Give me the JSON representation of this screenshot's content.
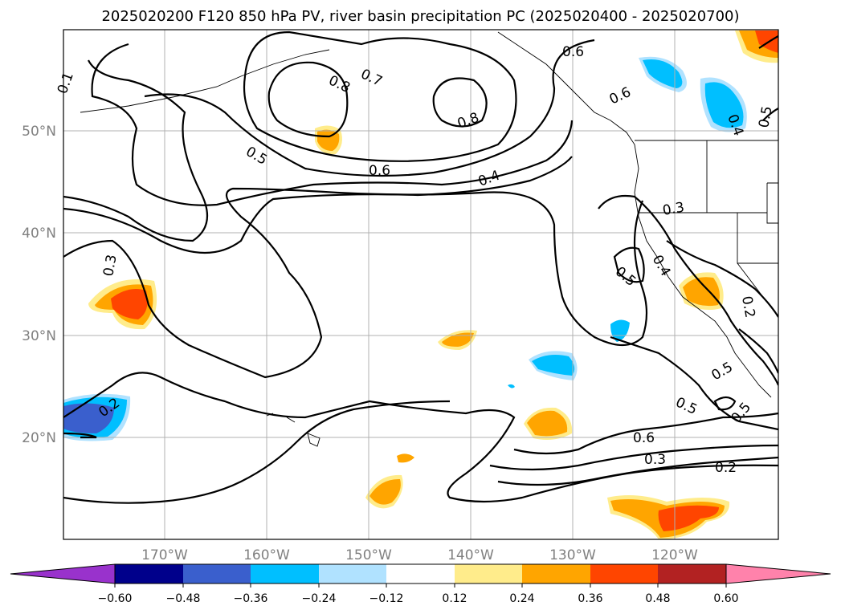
{
  "title": "2025020200 F120 850 hPa PV, river basin precipitation PC (2025020400 - 2025020700)",
  "lat_labels": [
    "50°N",
    "40°N",
    "30°N",
    "20°N"
  ],
  "lon_labels": [
    "170°W",
    "160°W",
    "150°W",
    "140°W",
    "130°W",
    "120°W"
  ],
  "contour_labels": [
    "0.8",
    "0.7",
    "0.6",
    "0.8",
    "0.6",
    "0.5",
    "0.6",
    "0.4",
    "0.3",
    "0.4",
    "0.5",
    "0.3",
    "0.2",
    "0.5",
    "0.5",
    "0.6",
    "0.3",
    "0.2",
    "0.5",
    "0.4",
    "0.5",
    "0.1",
    "0.2"
  ],
  "colorbar": {
    "ticks": [
      "−0.60",
      "−0.48",
      "−0.36",
      "−0.24",
      "−0.12",
      "0.12",
      "0.24",
      "0.36",
      "0.48",
      "0.60"
    ],
    "colors": [
      "#9932cc",
      "#00008b",
      "#3a5fcd",
      "#00bfff",
      "#b0e2ff",
      "#ffffff",
      "#ffec8b",
      "#ffa500",
      "#ff4500",
      "#b22222",
      "#ff82ab"
    ]
  },
  "colors": {
    "neg_strong": "#3a5fcd",
    "neg_mid": "#00bfff",
    "neg_light": "#b0e2ff",
    "pos_light": "#ffec8b",
    "pos_mid": "#ffa500",
    "pos_strong": "#ff4500",
    "grid": "#b0b0b0"
  }
}
